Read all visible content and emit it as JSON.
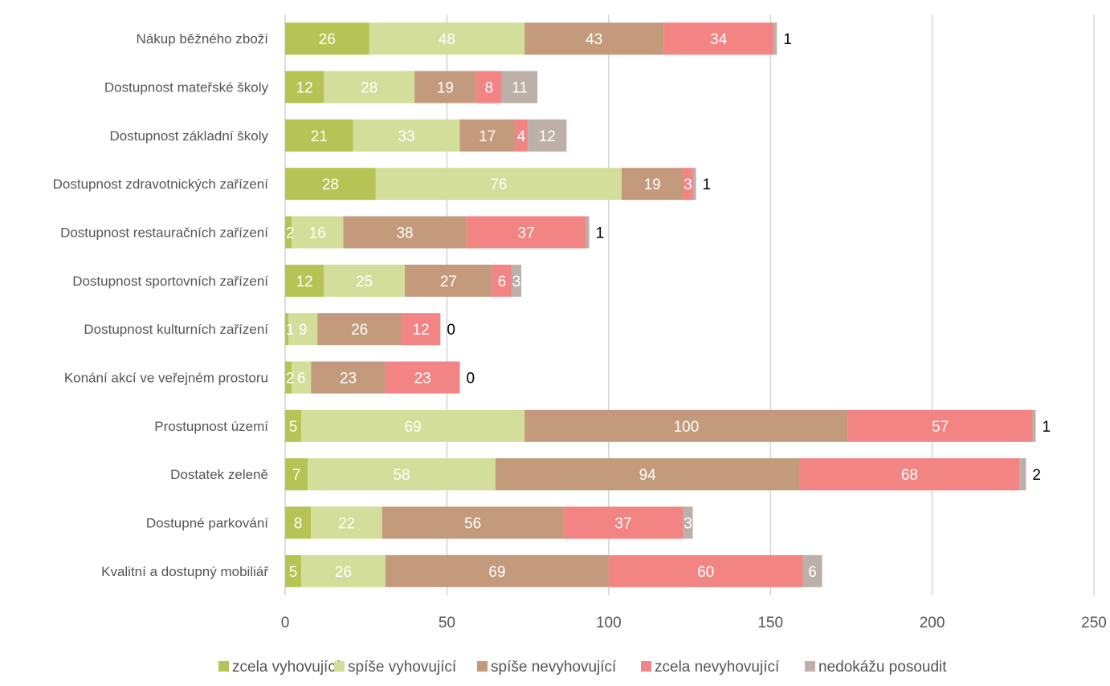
{
  "chart_data": {
    "type": "bar",
    "orientation": "horizontal",
    "stacked": true,
    "title": "",
    "xlabel": "",
    "ylabel": "",
    "xlim": [
      0,
      250
    ],
    "x_ticks": [
      0,
      50,
      100,
      150,
      200,
      250
    ],
    "grid": true,
    "legend_position": "bottom",
    "categories": [
      "Nákup běžného zboží",
      "Dostupnost mateřské školy",
      "Dostupnost základní školy",
      "Dostupnost zdravotnických zařízení",
      "Dostupnost restauračních zařízení",
      "Dostupnost sportovních zařízení",
      "Dostupnost kulturních zařízení",
      "Konání akcí ve veřejném prostoru",
      "Prostupnost území",
      "Dostatek zeleně",
      "Dostupné parkování",
      "Kvalitní a dostupný mobiliář"
    ],
    "series": [
      {
        "name": "zcela vyhovující",
        "color": "#b5c454",
        "values": [
          26,
          12,
          21,
          28,
          2,
          12,
          1,
          2,
          5,
          7,
          8,
          5
        ]
      },
      {
        "name": "spíše vyhovující",
        "color": "#d2de9a",
        "values": [
          48,
          28,
          33,
          76,
          16,
          25,
          9,
          6,
          69,
          58,
          22,
          26
        ]
      },
      {
        "name": "spíše nevyhovující",
        "color": "#c49a7c",
        "values": [
          43,
          19,
          17,
          19,
          38,
          27,
          26,
          23,
          100,
          94,
          56,
          69
        ]
      },
      {
        "name": "zcela nevyhovující",
        "color": "#f28583",
        "values": [
          34,
          8,
          4,
          3,
          37,
          6,
          12,
          23,
          57,
          68,
          37,
          60
        ]
      },
      {
        "name": "nedokážu posoudit",
        "color": "#bdb0a9",
        "values": [
          1,
          11,
          12,
          1,
          1,
          3,
          0,
          0,
          1,
          2,
          3,
          6
        ]
      }
    ]
  }
}
